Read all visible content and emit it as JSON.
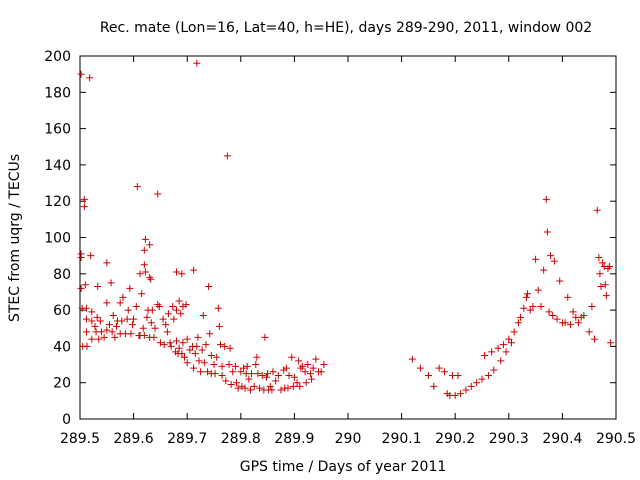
{
  "chart_data": {
    "type": "scatter",
    "title": "Rec. mate (Lon=16, Lat=40, h=HE), days 289-290, 2011, window 002",
    "xlabel": "GPS time / Days of year 2011",
    "ylabel": "STEC from uqrg / TECUs",
    "xlim": [
      289.5,
      290.5
    ],
    "ylim": [
      0,
      200
    ],
    "x_ticks": [
      289.5,
      289.6,
      289.7,
      289.8,
      289.9,
      290,
      290.1,
      290.2,
      290.3,
      290.4,
      290.5
    ],
    "x_tick_labels": [
      "289.5",
      "289.6",
      "289.7",
      "289.8",
      "289.9",
      "290",
      "290.1",
      "290.2",
      "290.3",
      "290.4",
      "290.5"
    ],
    "y_ticks": [
      0,
      20,
      40,
      60,
      80,
      100,
      120,
      140,
      160,
      180,
      200
    ],
    "y_tick_labels": [
      "0",
      "20",
      "40",
      "60",
      "80",
      "100",
      "120",
      "140",
      "160",
      "180",
      "200"
    ],
    "grid": false,
    "marker": "+",
    "color": "#cc0000",
    "series": [
      {
        "points": [
          [
            289.502,
            190
          ],
          [
            289.502,
            91
          ],
          [
            289.502,
            89
          ],
          [
            289.502,
            72
          ],
          [
            289.504,
            61
          ],
          [
            289.505,
            40
          ],
          [
            289.508,
            121
          ],
          [
            289.508,
            117
          ],
          [
            289.51,
            74
          ],
          [
            289.512,
            61
          ],
          [
            289.512,
            55
          ],
          [
            289.512,
            48
          ],
          [
            289.513,
            40
          ],
          [
            289.518,
            188
          ],
          [
            289.52,
            90
          ],
          [
            289.522,
            59
          ],
          [
            289.522,
            54
          ],
          [
            289.522,
            44
          ],
          [
            289.528,
            51
          ],
          [
            289.53,
            48
          ],
          [
            289.532,
            56
          ],
          [
            289.533,
            73
          ],
          [
            289.535,
            44
          ],
          [
            289.538,
            54
          ],
          [
            289.54,
            48
          ],
          [
            289.545,
            45
          ],
          [
            289.55,
            86
          ],
          [
            289.55,
            64
          ],
          [
            289.55,
            49
          ],
          [
            289.555,
            52
          ],
          [
            289.558,
            75
          ],
          [
            289.56,
            48
          ],
          [
            289.562,
            57
          ],
          [
            289.565,
            45
          ],
          [
            289.568,
            51
          ],
          [
            289.57,
            54
          ],
          [
            289.575,
            64
          ],
          [
            289.575,
            47
          ],
          [
            289.578,
            54
          ],
          [
            289.58,
            67
          ],
          [
            289.585,
            47
          ],
          [
            289.588,
            55
          ],
          [
            289.59,
            60
          ],
          [
            289.593,
            72
          ],
          [
            289.595,
            47
          ],
          [
            289.598,
            52
          ],
          [
            289.6,
            55
          ],
          [
            289.605,
            62
          ],
          [
            289.607,
            128
          ],
          [
            289.61,
            46
          ],
          [
            289.612,
            80
          ],
          [
            289.612,
            46
          ],
          [
            289.615,
            69
          ],
          [
            289.618,
            50
          ],
          [
            289.62,
            93
          ],
          [
            289.62,
            85
          ],
          [
            289.62,
            46
          ],
          [
            289.622,
            99
          ],
          [
            289.622,
            81
          ],
          [
            289.625,
            56
          ],
          [
            289.627,
            60
          ],
          [
            289.63,
            96
          ],
          [
            289.63,
            78
          ],
          [
            289.63,
            45
          ],
          [
            289.632,
            77
          ],
          [
            289.633,
            53
          ],
          [
            289.635,
            60
          ],
          [
            289.638,
            45
          ],
          [
            289.64,
            50
          ],
          [
            289.645,
            124
          ],
          [
            289.645,
            63
          ],
          [
            289.648,
            62
          ],
          [
            289.65,
            42
          ],
          [
            289.655,
            55
          ],
          [
            289.657,
            41
          ],
          [
            289.66,
            52
          ],
          [
            289.663,
            48
          ],
          [
            289.665,
            58
          ],
          [
            289.668,
            42
          ],
          [
            289.67,
            40
          ],
          [
            289.673,
            62
          ],
          [
            289.675,
            55
          ],
          [
            289.678,
            37
          ],
          [
            289.68,
            81
          ],
          [
            289.68,
            60
          ],
          [
            289.68,
            43
          ],
          [
            289.683,
            36
          ],
          [
            289.685,
            65
          ],
          [
            289.685,
            39
          ],
          [
            289.688,
            58
          ],
          [
            289.69,
            80
          ],
          [
            289.69,
            36
          ],
          [
            289.692,
            62
          ],
          [
            289.692,
            42
          ],
          [
            289.695,
            34
          ],
          [
            289.698,
            63
          ],
          [
            289.7,
            44
          ],
          [
            289.7,
            31
          ],
          [
            289.705,
            38
          ],
          [
            289.71,
            40
          ],
          [
            289.712,
            82
          ],
          [
            289.712,
            28
          ],
          [
            289.715,
            36
          ],
          [
            289.718,
            196
          ],
          [
            289.718,
            40
          ],
          [
            289.72,
            45
          ],
          [
            289.722,
            32
          ],
          [
            289.725,
            26
          ],
          [
            289.728,
            38
          ],
          [
            289.73,
            57
          ],
          [
            289.732,
            31
          ],
          [
            289.735,
            41
          ],
          [
            289.738,
            26
          ],
          [
            289.74,
            73
          ],
          [
            289.742,
            47
          ],
          [
            289.745,
            35
          ],
          [
            289.745,
            25
          ],
          [
            289.75,
            30
          ],
          [
            289.752,
            25
          ],
          [
            289.755,
            34
          ],
          [
            289.758,
            61
          ],
          [
            289.76,
            51
          ],
          [
            289.762,
            41
          ],
          [
            289.765,
            29
          ],
          [
            289.765,
            24
          ],
          [
            289.77,
            40
          ],
          [
            289.772,
            21
          ],
          [
            289.775,
            145
          ],
          [
            289.778,
            30
          ],
          [
            289.78,
            39
          ],
          [
            289.782,
            19
          ],
          [
            289.785,
            26
          ],
          [
            289.79,
            29
          ],
          [
            289.792,
            20
          ],
          [
            289.795,
            17
          ],
          [
            289.8,
            26
          ],
          [
            289.802,
            18
          ],
          [
            289.805,
            28
          ],
          [
            289.808,
            17
          ],
          [
            289.81,
            25
          ],
          [
            289.812,
            29
          ],
          [
            289.815,
            22
          ],
          [
            289.818,
            16
          ],
          [
            289.82,
            25
          ],
          [
            289.825,
            18
          ],
          [
            289.828,
            30
          ],
          [
            289.83,
            34
          ],
          [
            289.832,
            25
          ],
          [
            289.835,
            17
          ],
          [
            289.84,
            24
          ],
          [
            289.843,
            16
          ],
          [
            289.845,
            45
          ],
          [
            289.848,
            23
          ],
          [
            289.85,
            25
          ],
          [
            289.852,
            16
          ],
          [
            289.855,
            18
          ],
          [
            289.858,
            16
          ],
          [
            289.86,
            26
          ],
          [
            289.865,
            21
          ],
          [
            289.87,
            24
          ],
          [
            289.875,
            16
          ],
          [
            289.88,
            27
          ],
          [
            289.882,
            17
          ],
          [
            289.885,
            28
          ],
          [
            289.888,
            17
          ],
          [
            289.89,
            24
          ],
          [
            289.895,
            34
          ],
          [
            289.898,
            18
          ],
          [
            289.9,
            23
          ],
          [
            289.905,
            20
          ],
          [
            289.908,
            32
          ],
          [
            289.91,
            18
          ],
          [
            289.912,
            28
          ],
          [
            289.915,
            29
          ],
          [
            289.92,
            26
          ],
          [
            289.922,
            20
          ],
          [
            289.925,
            30
          ],
          [
            289.93,
            25
          ],
          [
            289.932,
            22
          ],
          [
            289.935,
            28
          ],
          [
            289.94,
            33
          ],
          [
            289.945,
            26
          ],
          [
            289.95,
            26
          ],
          [
            289.955,
            30
          ],
          [
            290.12,
            33
          ],
          [
            290.135,
            28
          ],
          [
            290.15,
            24
          ],
          [
            290.16,
            18
          ],
          [
            290.17,
            28
          ],
          [
            290.18,
            26
          ],
          [
            290.185,
            14
          ],
          [
            290.19,
            13
          ],
          [
            290.195,
            24
          ],
          [
            290.2,
            13
          ],
          [
            290.205,
            24
          ],
          [
            290.21,
            14
          ],
          [
            290.22,
            16
          ],
          [
            290.23,
            18
          ],
          [
            290.24,
            20
          ],
          [
            290.25,
            22
          ],
          [
            290.255,
            35
          ],
          [
            290.262,
            24
          ],
          [
            290.268,
            37
          ],
          [
            290.272,
            27
          ],
          [
            290.28,
            39
          ],
          [
            290.285,
            32
          ],
          [
            290.29,
            41
          ],
          [
            290.295,
            37
          ],
          [
            290.3,
            44
          ],
          [
            290.305,
            42
          ],
          [
            290.31,
            48
          ],
          [
            290.318,
            53
          ],
          [
            290.322,
            56
          ],
          [
            290.328,
            61
          ],
          [
            290.333,
            67
          ],
          [
            290.335,
            69
          ],
          [
            290.34,
            60
          ],
          [
            290.345,
            62
          ],
          [
            290.35,
            88
          ],
          [
            290.355,
            71
          ],
          [
            290.36,
            62
          ],
          [
            290.365,
            82
          ],
          [
            290.37,
            121
          ],
          [
            290.372,
            103
          ],
          [
            290.375,
            59
          ],
          [
            290.378,
            90
          ],
          [
            290.382,
            57
          ],
          [
            290.385,
            87
          ],
          [
            290.39,
            55
          ],
          [
            290.395,
            76
          ],
          [
            290.4,
            53
          ],
          [
            290.405,
            53
          ],
          [
            290.41,
            67
          ],
          [
            290.415,
            52
          ],
          [
            290.42,
            59
          ],
          [
            290.425,
            56
          ],
          [
            290.43,
            53
          ],
          [
            290.435,
            56
          ],
          [
            290.44,
            57
          ],
          [
            290.45,
            48
          ],
          [
            290.455,
            62
          ],
          [
            290.46,
            44
          ],
          [
            290.465,
            115
          ],
          [
            290.468,
            89
          ],
          [
            290.47,
            80
          ],
          [
            290.472,
            73
          ],
          [
            290.475,
            86
          ],
          [
            290.478,
            84
          ],
          [
            290.48,
            74
          ],
          [
            290.482,
            68
          ],
          [
            290.485,
            83
          ],
          [
            290.488,
            84
          ],
          [
            290.49,
            42
          ]
        ]
      }
    ]
  }
}
